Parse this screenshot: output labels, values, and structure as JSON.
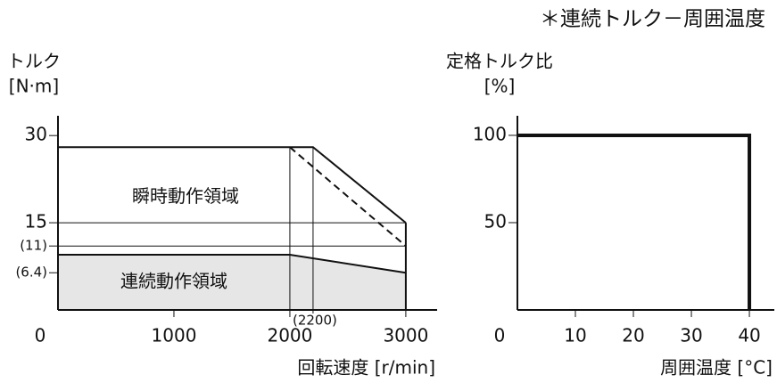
{
  "annotation": "＊連続トルク－周囲温度",
  "chart_data": [
    {
      "type": "line",
      "ylabel": "トルク",
      "yunit": "[N·m]",
      "xlabel": "回転速度 [r/min]",
      "xlim": [
        0,
        3270
      ],
      "ylim": [
        0,
        33.4
      ],
      "xticks": [
        0,
        1000,
        2000,
        3000,
        {
          "value": 2200,
          "label": "(2200)"
        }
      ],
      "yticks": [
        30,
        15,
        {
          "value": 11,
          "label": "(11)"
        },
        {
          "value": 6.4,
          "label": "(6.4)"
        }
      ],
      "reference_y": [
        15,
        11
      ],
      "reference_x": [
        2000,
        2200
      ],
      "series": [
        {
          "name": "瞬時動作領域",
          "x": [
            0,
            2200,
            3000
          ],
          "values": [
            28,
            28,
            15
          ],
          "color": "#111111"
        },
        {
          "name": "連続動作領域",
          "x": [
            0,
            2000,
            3000
          ],
          "values": [
            9.5,
            9.5,
            6.4
          ],
          "color": "#111111",
          "fill": "#e6e6e6"
        },
        {
          "x": [
            2000,
            3000
          ],
          "values": [
            28,
            11
          ],
          "color": "#111111",
          "dashed": true
        }
      ]
    },
    {
      "type": "line",
      "ylabel": "定格トルク比",
      "yunit": "[%]",
      "xlabel": "周囲温度 [°C]",
      "xlim": [
        0,
        44.3
      ],
      "ylim": [
        0,
        111.2
      ],
      "xticks": [
        0,
        10,
        20,
        30,
        40
      ],
      "yticks": [
        100,
        50
      ],
      "series": [
        {
          "x": [
            0,
            40,
            40
          ],
          "values": [
            100,
            100,
            0
          ],
          "color": "#111111",
          "width": 4
        }
      ]
    }
  ]
}
